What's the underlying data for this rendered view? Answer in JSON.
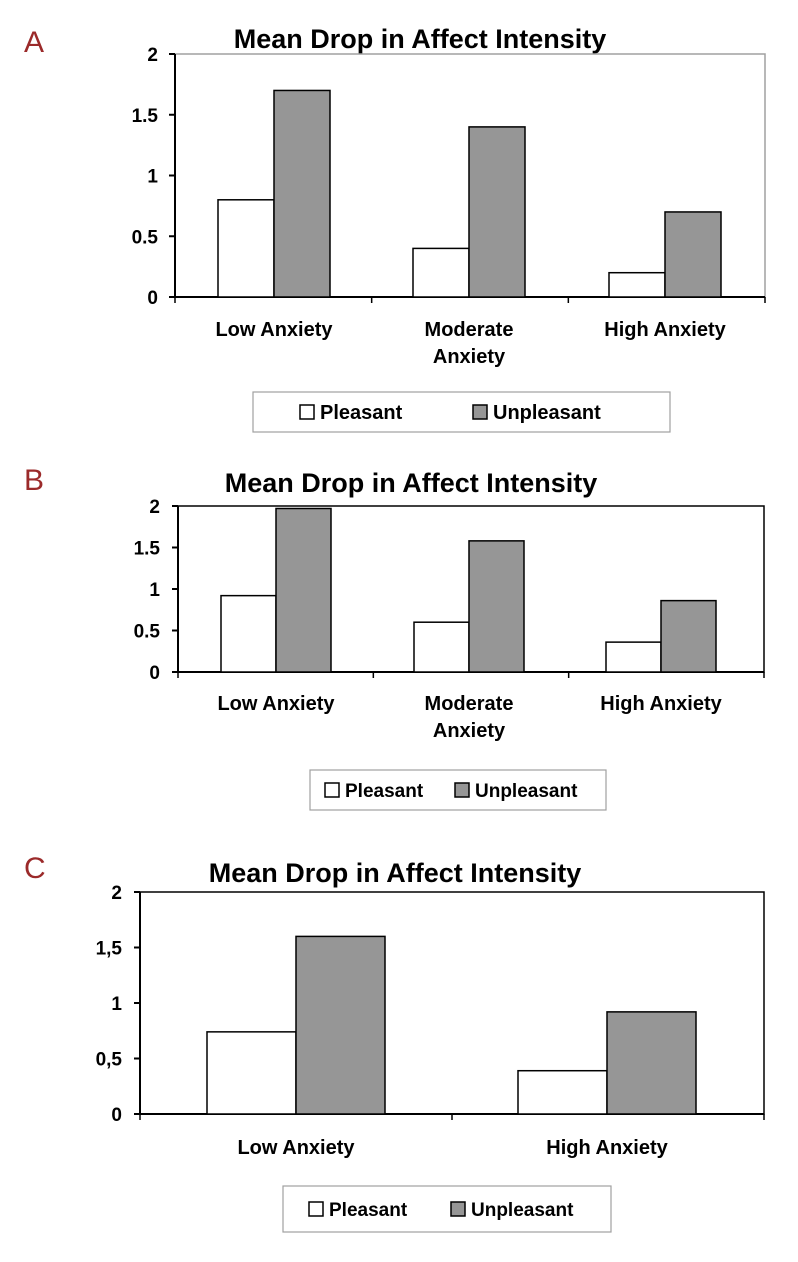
{
  "colors": {
    "panel_label": "#9b2a2a",
    "pleasant_fill": "#ffffff",
    "unpleasant_fill": "#969696",
    "axis": "#000000",
    "frame_light": "#a0a0a0"
  },
  "chart_data": [
    {
      "panel_label": "A",
      "type": "bar",
      "title": "Mean Drop in Affect Intensity",
      "categories": [
        [
          "Low Anxiety"
        ],
        [
          "Moderate",
          "Anxiety"
        ],
        [
          "High Anxiety"
        ]
      ],
      "series": [
        {
          "name": "Pleasant",
          "values": [
            0.8,
            0.4,
            0.2
          ]
        },
        {
          "name": "Unpleasant",
          "values": [
            1.7,
            1.4,
            0.7
          ]
        }
      ],
      "ylim": [
        0,
        2
      ],
      "yticks": [
        "0",
        "0.5",
        "1",
        "1.5",
        "2"
      ],
      "legend": [
        "Pleasant",
        "Unpleasant"
      ]
    },
    {
      "panel_label": "B",
      "type": "bar",
      "title": "Mean Drop in Affect Intensity",
      "categories": [
        [
          "Low Anxiety"
        ],
        [
          "Moderate",
          "Anxiety"
        ],
        [
          "High Anxiety"
        ]
      ],
      "series": [
        {
          "name": "Pleasant",
          "values": [
            0.92,
            0.6,
            0.36
          ]
        },
        {
          "name": "Unpleasant",
          "values": [
            1.97,
            1.58,
            0.86
          ]
        }
      ],
      "ylim": [
        0,
        2
      ],
      "yticks": [
        "0",
        "0.5",
        "1",
        "1.5",
        "2"
      ],
      "legend": [
        "Pleasant",
        "Unpleasant"
      ]
    },
    {
      "panel_label": "C",
      "type": "bar",
      "title": "Mean Drop in Affect Intensity",
      "categories": [
        [
          "Low Anxiety"
        ],
        [
          "High Anxiety"
        ]
      ],
      "series": [
        {
          "name": "Pleasant",
          "values": [
            0.74,
            0.39
          ]
        },
        {
          "name": "Unpleasant",
          "values": [
            1.6,
            0.92
          ]
        }
      ],
      "ylim": [
        0,
        2
      ],
      "yticks": [
        "0",
        "0,5",
        "1",
        "1,5",
        "2"
      ],
      "legend": [
        "Pleasant",
        "Unpleasant"
      ]
    }
  ]
}
